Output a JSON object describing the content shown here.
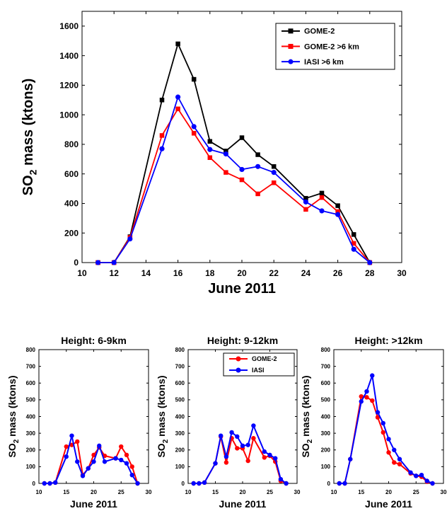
{
  "chart_data": [
    {
      "type": "line",
      "title": "",
      "xlabel": "June 2011",
      "ylabel_main": "SO",
      "ylabel_sub": "2",
      "ylabel_rest": " mass (ktons)",
      "xlim": [
        10,
        30
      ],
      "ylim": [
        0,
        1700
      ],
      "xticks": [
        10,
        12,
        14,
        16,
        18,
        20,
        22,
        24,
        26,
        28,
        30
      ],
      "yticks": [
        0,
        200,
        400,
        600,
        800,
        1000,
        1200,
        1400,
        1600
      ],
      "grid": false,
      "legend_position": "top-right",
      "series": [
        {
          "name": "GOME-2",
          "color": "#000000",
          "marker": "square",
          "x": [
            11,
            12,
            13,
            15,
            16,
            17,
            18,
            19,
            20,
            21,
            22,
            24,
            25,
            26,
            27,
            28
          ],
          "y": [
            0,
            0,
            175,
            1100,
            1480,
            1240,
            820,
            755,
            845,
            730,
            650,
            435,
            470,
            385,
            190,
            0
          ]
        },
        {
          "name": "GOME-2 >6 km",
          "color": "#ff0000",
          "marker": "square",
          "x": [
            11,
            12,
            13,
            15,
            16,
            17,
            18,
            19,
            20,
            21,
            22,
            24,
            25,
            26,
            27,
            28
          ],
          "y": [
            0,
            0,
            170,
            860,
            1040,
            875,
            710,
            610,
            560,
            465,
            540,
            360,
            440,
            345,
            130,
            0
          ]
        },
        {
          "name": "IASI >6 km",
          "color": "#0000ff",
          "marker": "circle",
          "x": [
            11,
            12,
            13,
            15,
            16,
            17,
            18,
            19,
            20,
            21,
            22,
            24,
            25,
            26,
            27,
            28
          ],
          "y": [
            0,
            0,
            160,
            770,
            1120,
            920,
            765,
            735,
            630,
            650,
            610,
            410,
            350,
            325,
            90,
            0
          ]
        }
      ]
    },
    {
      "type": "line",
      "title": "Height: 6-9km",
      "xlabel": "June 2011",
      "ylabel_main": "SO",
      "ylabel_sub": "2",
      "ylabel_rest": " mass (ktons)",
      "xlim": [
        10,
        30
      ],
      "ylim": [
        0,
        800
      ],
      "xticks": [
        10,
        15,
        20,
        25,
        30
      ],
      "yticks": [
        0,
        100,
        200,
        300,
        400,
        500,
        600,
        700,
        800
      ],
      "grid": false,
      "series": [
        {
          "name": "GOME-2",
          "color": "#ff0000",
          "marker": "circle",
          "x": [
            11,
            12,
            13,
            15,
            16,
            17,
            18,
            19,
            20,
            21,
            22,
            24,
            25,
            26,
            27,
            28
          ],
          "y": [
            0,
            0,
            5,
            220,
            230,
            250,
            50,
            90,
            170,
            215,
            165,
            150,
            220,
            170,
            100,
            0
          ]
        },
        {
          "name": "IASI",
          "color": "#0000ff",
          "marker": "circle",
          "x": [
            11,
            12,
            13,
            15,
            16,
            17,
            18,
            19,
            20,
            21,
            22,
            24,
            25,
            26,
            27,
            28
          ],
          "y": [
            0,
            0,
            5,
            160,
            285,
            130,
            45,
            90,
            130,
            225,
            130,
            150,
            140,
            120,
            50,
            0
          ]
        }
      ]
    },
    {
      "type": "line",
      "title": "Height: 9-12km",
      "xlabel": "June 2011",
      "ylabel_main": "SO",
      "ylabel_sub": "2",
      "ylabel_rest": " mass (ktons)",
      "xlim": [
        10,
        30
      ],
      "ylim": [
        0,
        800
      ],
      "xticks": [
        10,
        15,
        20,
        25,
        30
      ],
      "yticks": [
        0,
        100,
        200,
        300,
        400,
        500,
        600,
        700,
        800
      ],
      "grid": false,
      "legend_position": "top-right",
      "series": [
        {
          "name": "GOME-2",
          "color": "#ff0000",
          "marker": "circle",
          "x": [
            11,
            12,
            13,
            15,
            16,
            17,
            18,
            19,
            20,
            21,
            22,
            24,
            25,
            26,
            27,
            28
          ],
          "y": [
            0,
            0,
            5,
            120,
            280,
            125,
            270,
            210,
            210,
            135,
            270,
            155,
            165,
            130,
            15,
            0
          ]
        },
        {
          "name": "IASI",
          "color": "#0000ff",
          "marker": "circle",
          "x": [
            11,
            12,
            13,
            15,
            16,
            17,
            18,
            19,
            20,
            21,
            22,
            24,
            25,
            26,
            27,
            28
          ],
          "y": [
            0,
            0,
            5,
            120,
            285,
            160,
            305,
            280,
            225,
            230,
            345,
            190,
            170,
            150,
            25,
            0
          ]
        }
      ]
    },
    {
      "type": "line",
      "title": "Height: >12km",
      "xlabel": "June 2011",
      "ylabel_main": "SO",
      "ylabel_sub": "2",
      "ylabel_rest": " mass (ktons)",
      "xlim": [
        10,
        30
      ],
      "ylim": [
        0,
        800
      ],
      "xticks": [
        10,
        15,
        20,
        25,
        30
      ],
      "yticks": [
        0,
        100,
        200,
        300,
        400,
        500,
        600,
        700,
        800
      ],
      "grid": false,
      "series": [
        {
          "name": "GOME-2",
          "color": "#ff0000",
          "marker": "circle",
          "x": [
            11,
            12,
            13,
            15,
            16,
            17,
            18,
            19,
            20,
            21,
            22,
            24,
            25,
            26,
            27,
            28
          ],
          "y": [
            0,
            0,
            145,
            520,
            515,
            495,
            395,
            305,
            185,
            125,
            115,
            60,
            45,
            40,
            10,
            0
          ]
        },
        {
          "name": "IASI",
          "color": "#0000ff",
          "marker": "circle",
          "x": [
            11,
            12,
            13,
            15,
            16,
            17,
            18,
            19,
            20,
            21,
            22,
            24,
            25,
            26,
            27,
            28
          ],
          "y": [
            0,
            0,
            145,
            490,
            550,
            645,
            425,
            360,
            265,
            200,
            145,
            65,
            45,
            50,
            15,
            0
          ]
        }
      ]
    }
  ]
}
